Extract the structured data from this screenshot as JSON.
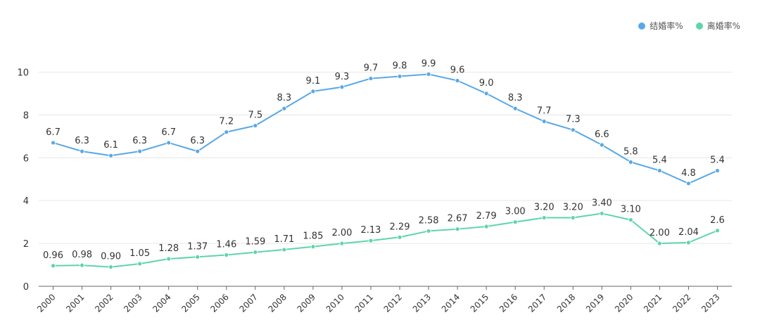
{
  "chart_data": {
    "type": "line",
    "title": "",
    "xlabel": "",
    "ylabel": "",
    "ylim": [
      0,
      11
    ],
    "yticks": [
      "0",
      "2",
      "4",
      "6",
      "8",
      "10"
    ],
    "grid": true,
    "legend_position": "top-right",
    "categories": [
      "2000",
      "2001",
      "2002",
      "2003",
      "2004",
      "2005",
      "2006",
      "2007",
      "2008",
      "2009",
      "2010",
      "2011",
      "2012",
      "2013",
      "2014",
      "2015",
      "2016",
      "2017",
      "2018",
      "2019",
      "2020",
      "2021",
      "2022",
      "2023"
    ],
    "series": [
      {
        "name": "结婚率%",
        "color": "#5aa8e6",
        "values": [
          6.7,
          6.3,
          6.1,
          6.3,
          6.7,
          6.3,
          7.2,
          7.5,
          8.3,
          9.1,
          9.3,
          9.7,
          9.8,
          9.9,
          9.6,
          9.0,
          8.3,
          7.7,
          7.3,
          6.6,
          5.8,
          5.4,
          4.8,
          5.4
        ],
        "labels": [
          "6.7",
          "6.3",
          "6.1",
          "6.3",
          "6.7",
          "6.3",
          "7.2",
          "7.5",
          "8.3",
          "9.1",
          "9.3",
          "9.7",
          "9.8",
          "9.9",
          "9.6",
          "9.0",
          "8.3",
          "7.7",
          "7.3",
          "6.6",
          "5.8",
          "5.4",
          "4.8",
          "5.4"
        ]
      },
      {
        "name": "离婚率%",
        "color": "#5dd6a8",
        "values": [
          0.96,
          0.98,
          0.9,
          1.05,
          1.28,
          1.37,
          1.46,
          1.59,
          1.71,
          1.85,
          2.0,
          2.13,
          2.29,
          2.58,
          2.67,
          2.79,
          3.0,
          3.2,
          3.2,
          3.4,
          3.1,
          2.0,
          2.04,
          2.6
        ],
        "labels": [
          "0.96",
          "0.98",
          "0.90",
          "1.05",
          "1.28",
          "1.37",
          "1.46",
          "1.59",
          "1.71",
          "1.85",
          "2.00",
          "2.13",
          "2.29",
          "2.58",
          "2.67",
          "2.79",
          "3.00",
          "3.20",
          "3.20",
          "3.40",
          "3.10",
          "2.00",
          "2.04",
          "2.6"
        ]
      }
    ]
  }
}
